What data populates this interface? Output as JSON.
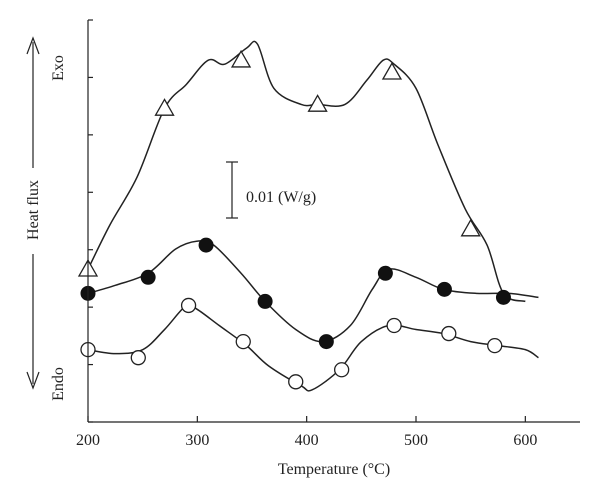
{
  "chart_data": {
    "type": "line",
    "title": "",
    "xlabel": "Temperature (°C)",
    "ylabel": "Heat flux",
    "y_top_label": "Exo",
    "y_bottom_label": "Endo",
    "scale_bar_label": "0.01 (W/g)",
    "xlim": [
      200,
      650
    ],
    "ylim": [
      0,
      1
    ],
    "x_ticks": [
      200,
      300,
      400,
      500,
      600
    ],
    "grid": false,
    "series": [
      {
        "marker": "triangle-open",
        "line": [
          [
            200,
            0.38
          ],
          [
            220,
            0.49
          ],
          [
            245,
            0.61
          ],
          [
            270,
            0.78
          ],
          [
            290,
            0.84
          ],
          [
            310,
            0.9
          ],
          [
            325,
            0.89
          ],
          [
            345,
            0.93
          ],
          [
            355,
            0.94
          ],
          [
            370,
            0.83
          ],
          [
            395,
            0.79
          ],
          [
            410,
            0.79
          ],
          [
            435,
            0.79
          ],
          [
            455,
            0.85
          ],
          [
            470,
            0.9
          ],
          [
            480,
            0.89
          ],
          [
            500,
            0.83
          ],
          [
            520,
            0.69
          ],
          [
            545,
            0.53
          ],
          [
            565,
            0.44
          ],
          [
            580,
            0.32
          ],
          [
            600,
            0.3
          ]
        ],
        "markers": [
          [
            200,
            0.38
          ],
          [
            270,
            0.78
          ],
          [
            340,
            0.9
          ],
          [
            410,
            0.79
          ],
          [
            478,
            0.87
          ],
          [
            550,
            0.48
          ]
        ]
      },
      {
        "marker": "circle-filled",
        "line": [
          [
            200,
            0.32
          ],
          [
            225,
            0.34
          ],
          [
            255,
            0.37
          ],
          [
            280,
            0.43
          ],
          [
            300,
            0.45
          ],
          [
            315,
            0.44
          ],
          [
            340,
            0.37
          ],
          [
            362,
            0.3
          ],
          [
            390,
            0.23
          ],
          [
            415,
            0.2
          ],
          [
            440,
            0.24
          ],
          [
            460,
            0.33
          ],
          [
            475,
            0.38
          ],
          [
            500,
            0.36
          ],
          [
            525,
            0.33
          ],
          [
            555,
            0.32
          ],
          [
            585,
            0.32
          ],
          [
            612,
            0.31
          ]
        ],
        "markers": [
          [
            200,
            0.32
          ],
          [
            255,
            0.36
          ],
          [
            308,
            0.44
          ],
          [
            362,
            0.3
          ],
          [
            418,
            0.2
          ],
          [
            472,
            0.37
          ],
          [
            526,
            0.33
          ],
          [
            580,
            0.31
          ]
        ]
      },
      {
        "marker": "circle-open",
        "line": [
          [
            200,
            0.18
          ],
          [
            225,
            0.17
          ],
          [
            250,
            0.18
          ],
          [
            270,
            0.23
          ],
          [
            290,
            0.29
          ],
          [
            300,
            0.28
          ],
          [
            320,
            0.24
          ],
          [
            345,
            0.19
          ],
          [
            365,
            0.14
          ],
          [
            395,
            0.09
          ],
          [
            405,
            0.08
          ],
          [
            430,
            0.13
          ],
          [
            450,
            0.2
          ],
          [
            475,
            0.24
          ],
          [
            500,
            0.23
          ],
          [
            525,
            0.22
          ],
          [
            550,
            0.2
          ],
          [
            575,
            0.19
          ],
          [
            600,
            0.18
          ],
          [
            612,
            0.16
          ]
        ],
        "markers": [
          [
            200,
            0.18
          ],
          [
            246,
            0.16
          ],
          [
            292,
            0.29
          ],
          [
            342,
            0.2
          ],
          [
            390,
            0.1
          ],
          [
            432,
            0.13
          ],
          [
            480,
            0.24
          ],
          [
            530,
            0.22
          ],
          [
            572,
            0.19
          ]
        ]
      }
    ]
  }
}
